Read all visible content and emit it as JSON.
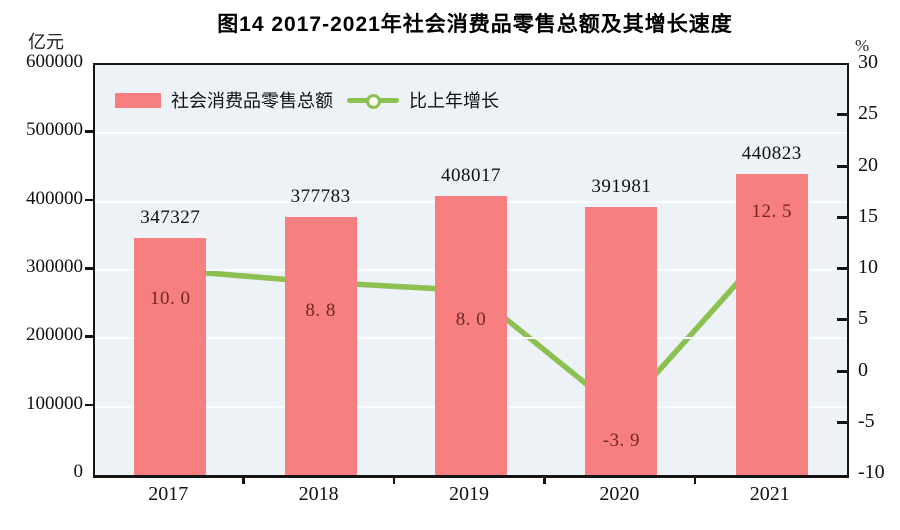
{
  "title": "图14  2017-2021年社会消费品零售总额及其增长速度",
  "left_axis": {
    "unit": "亿元",
    "min": 0,
    "max": 600000,
    "tick_values": [
      600000,
      500000,
      400000,
      300000,
      200000,
      100000,
      0
    ],
    "tick_labels": [
      "600000",
      "500000",
      "400000",
      "300000",
      "200000",
      "100000",
      "0"
    ]
  },
  "right_axis": {
    "unit": "%",
    "min": -10,
    "max": 30,
    "tick_values": [
      30,
      25,
      20,
      15,
      10,
      5,
      0,
      -5,
      -10
    ],
    "tick_labels": [
      "30",
      "25",
      "20",
      "15",
      "10",
      "5",
      "0",
      "-5",
      "-10"
    ]
  },
  "legend": [
    {
      "label": "社会消费品零售总额",
      "type": "bar",
      "color": "#f87f7f"
    },
    {
      "label": "比上年增长",
      "type": "line",
      "color": "#8cc152"
    }
  ],
  "colors": {
    "bar": "#f87f7f",
    "line": "#8cc152",
    "marker_fill": "#fdfdf0",
    "plot_bg": "#edf2f7",
    "gridline": "#fbfcfd",
    "growth_label": "#732626",
    "axis": "#151515"
  },
  "chart_data": {
    "type": "bar",
    "subtype": "bar+line combo",
    "title": "图14  2017-2021年社会消费品零售总额及其增长速度",
    "categories": [
      "2017",
      "2018",
      "2019",
      "2020",
      "2021"
    ],
    "series": [
      {
        "name": "社会消费品零售总额",
        "type": "bar",
        "axis": "left",
        "values": [
          347327,
          377783,
          408017,
          391981,
          440823
        ],
        "value_labels": [
          "347327",
          "377783",
          "408017",
          "391981",
          "440823"
        ],
        "color": "#f87f7f"
      },
      {
        "name": "比上年增长",
        "type": "line",
        "axis": "right",
        "values": [
          10.0,
          8.8,
          8.0,
          -3.9,
          12.5
        ],
        "value_labels": [
          "10. 0",
          "8. 8",
          "8. 0",
          "-3. 9",
          "12. 5"
        ],
        "label_side": [
          "below",
          "below",
          "below",
          "below",
          "above"
        ],
        "color": "#8cc152"
      }
    ],
    "xlabel": "",
    "ylabel_left": "亿元",
    "ylabel_right": "%",
    "ylim_left": [
      0,
      600000
    ],
    "ylim_right": [
      -10,
      30
    ],
    "grid": "horizontal, every 100000 on left axis",
    "legend_position": "top-left inside plot"
  }
}
